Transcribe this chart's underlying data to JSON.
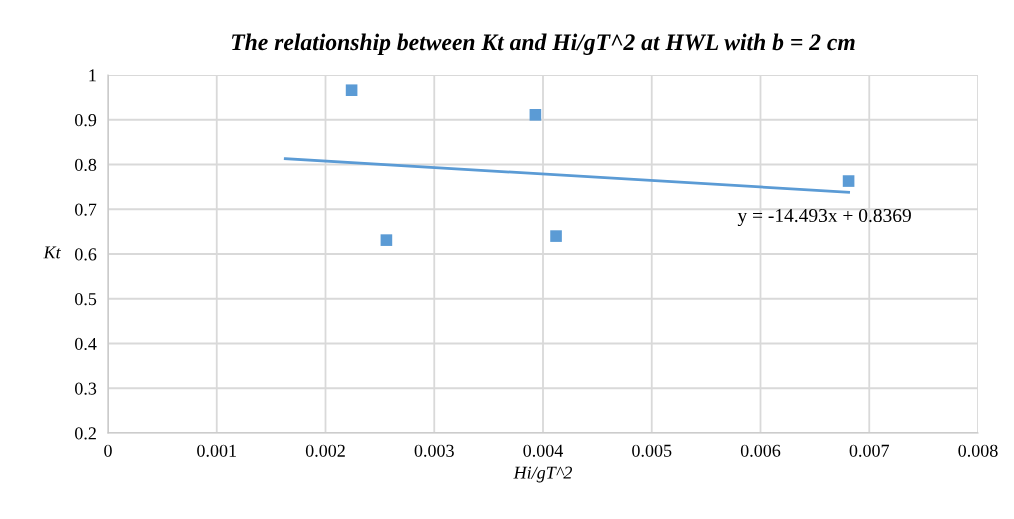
{
  "chart_data": {
    "type": "scatter",
    "title": "The relationship between Kt and Hi/gT^2 at HWL with b = 2 cm",
    "xlabel": "Hi/gT^2",
    "ylabel": "Kt",
    "xlim": [
      0,
      0.008
    ],
    "xticks": [
      0,
      0.001,
      0.002,
      0.003,
      0.004,
      0.005,
      0.006,
      0.007,
      0.008
    ],
    "ylim": [
      0.2,
      1
    ],
    "yticks": [
      {
        "value": 0.2,
        "label": "0.2"
      },
      {
        "value": 0.3,
        "label": "0.3"
      },
      {
        "value": 0.4,
        "label": "0.4"
      },
      {
        "value": 0.5,
        "label": "0.5"
      },
      {
        "value": 0.6,
        "label": "0.6"
      },
      {
        "value": 0.7,
        "label": "0.7"
      },
      {
        "value": 0.8,
        "label": "0.8"
      },
      {
        "value": 0.9,
        "label": "0.9"
      },
      {
        "value": 1,
        "label": "1"
      }
    ],
    "grid": true,
    "marker": "square",
    "series": [
      {
        "color": "#5b9bd5",
        "x": [
          0.00224,
          0.00256,
          0.00393,
          0.00412,
          0.00681
        ],
        "values": [
          0.966,
          0.631,
          0.911,
          0.64,
          0.763
        ]
      },
      {
        "type": "line",
        "color": "#5b9bd5",
        "marker": "none",
        "line_style": "solid",
        "x": [
          0.00163,
          0.00681
        ],
        "values": [
          0.813,
          0.738
        ]
      }
    ],
    "annotations": [
      {
        "text": "y = -14.493x + 0.8369",
        "x": 0.00681,
        "y": 0.738
      }
    ]
  }
}
